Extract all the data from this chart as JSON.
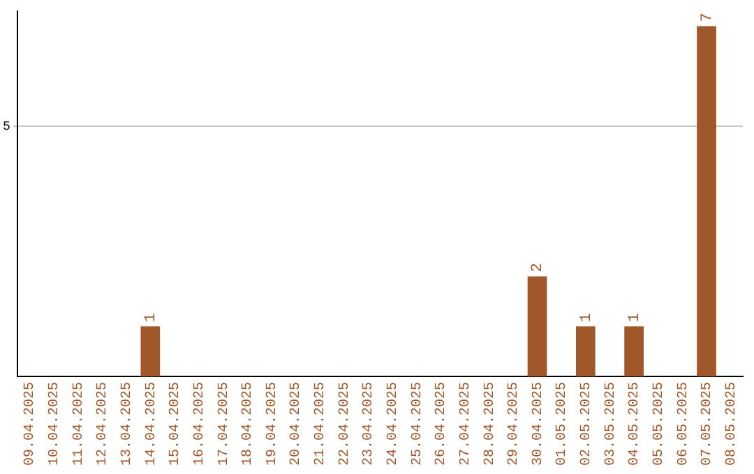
{
  "chart_data": {
    "type": "bar",
    "categories": [
      "09.04.2025",
      "10.04.2025",
      "11.04.2025",
      "12.04.2025",
      "13.04.2025",
      "14.04.2025",
      "15.04.2025",
      "16.04.2025",
      "17.04.2025",
      "18.04.2025",
      "19.04.2025",
      "20.04.2025",
      "21.04.2025",
      "22.04.2025",
      "23.04.2025",
      "24.04.2025",
      "25.04.2025",
      "26.04.2025",
      "27.04.2025",
      "28.04.2025",
      "29.04.2025",
      "30.04.2025",
      "01.05.2025",
      "02.05.2025",
      "03.05.2025",
      "04.05.2025",
      "05.05.2025",
      "06.05.2025",
      "07.05.2025",
      "08.05.2025"
    ],
    "values": [
      0,
      0,
      0,
      0,
      0,
      1,
      0,
      0,
      0,
      0,
      0,
      0,
      0,
      0,
      0,
      0,
      0,
      0,
      0,
      0,
      0,
      2,
      0,
      1,
      0,
      1,
      0,
      0,
      7,
      0
    ],
    "color": "#a0572a",
    "ylim": [
      0,
      7.3
    ],
    "yticks": [
      5
    ],
    "value_labels": [
      null,
      null,
      null,
      null,
      null,
      "1",
      null,
      null,
      null,
      null,
      null,
      null,
      null,
      null,
      null,
      null,
      null,
      null,
      null,
      null,
      null,
      "2",
      null,
      "1",
      null,
      "1",
      null,
      null,
      "7",
      null
    ],
    "grid": "y",
    "legend": false
  }
}
